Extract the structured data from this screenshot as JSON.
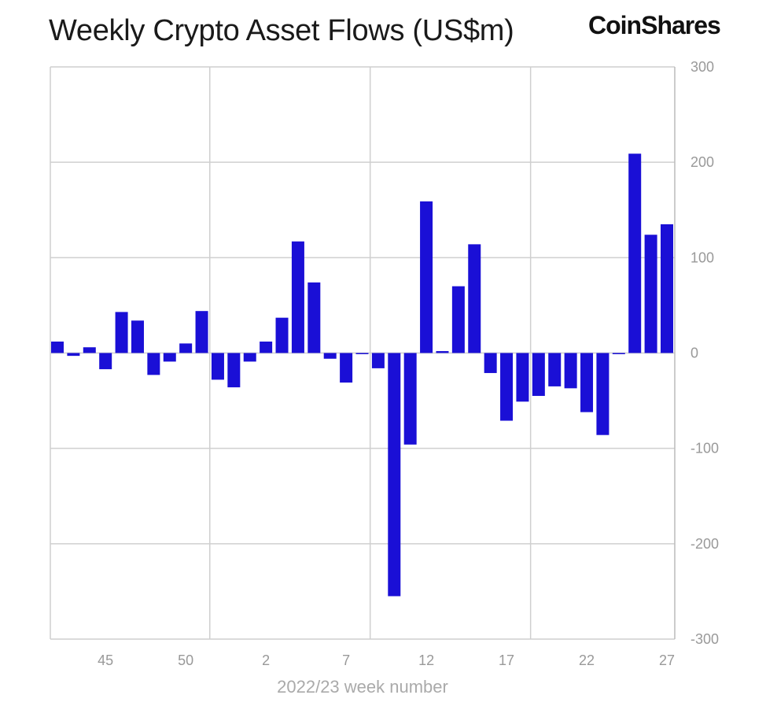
{
  "chart_data": {
    "type": "bar",
    "title": "Weekly Crypto Asset Flows (US$m)",
    "xlabel": "2022/23 week number",
    "ylabel": "",
    "ylim": [
      -300,
      300
    ],
    "yticks": [
      300,
      200,
      100,
      0,
      -100,
      -200,
      -300
    ],
    "y_axis_side": "right",
    "grid": true,
    "bar_color": "#1a0fd6",
    "categories": [
      "42",
      "43",
      "44",
      "45",
      "46",
      "47",
      "48",
      "49",
      "50",
      "51",
      "52",
      "53",
      "1",
      "2",
      "3",
      "4",
      "5",
      "6",
      "7",
      "8",
      "9",
      "10",
      "11",
      "12",
      "13",
      "14",
      "15",
      "16",
      "17",
      "18",
      "19",
      "20",
      "21",
      "22",
      "23",
      "24",
      "25",
      "26",
      "27"
    ],
    "xtick_labels": [
      "45",
      "50",
      "2",
      "7",
      "12",
      "17",
      "22",
      "27"
    ],
    "values": [
      12,
      -3,
      6,
      -17,
      43,
      34,
      -23,
      -9,
      10,
      44,
      -28,
      -36,
      -9,
      12,
      37,
      117,
      74,
      -6,
      -31,
      -1,
      -16,
      -255,
      -96,
      159,
      2,
      70,
      114,
      -21,
      -71,
      -51,
      -45,
      -35,
      -37,
      -62,
      -86,
      -1,
      209,
      124,
      135
    ]
  },
  "brand": {
    "logo": "CoinShares"
  }
}
